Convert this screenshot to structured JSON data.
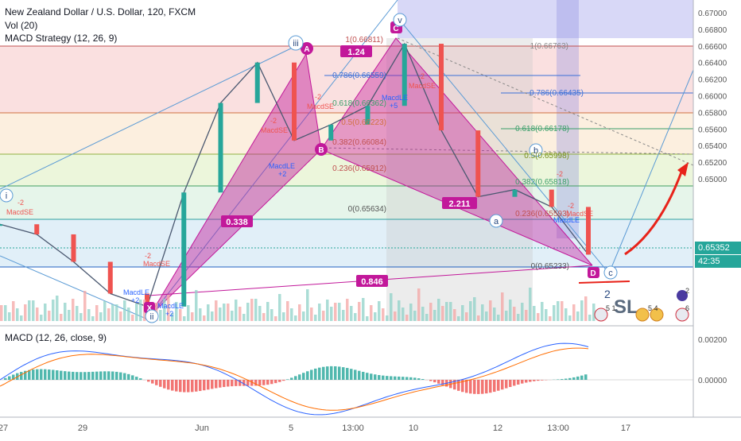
{
  "header": {
    "title": "New Zealand Dollar / U.S. Dollar, 120, FXCM",
    "volume": "Vol (20)",
    "strategy": "MACD Strategy (12, 26, 9)",
    "macd_title": "MACD (12, 26, close, 9)"
  },
  "price_axis": {
    "ticks": [
      "0.67000",
      "0.66800",
      "0.66600",
      "0.66400",
      "0.66200",
      "0.66000",
      "0.65800",
      "0.65600",
      "0.65400",
      "0.65200",
      "0.65000"
    ],
    "current_price": "0.65352",
    "countdown": "42:35"
  },
  "macd_axis": {
    "ticks": [
      "0.00200",
      "0.00000"
    ]
  },
  "time_axis": {
    "ticks": [
      "27",
      "29",
      "Jun",
      "5",
      "13:00",
      "10",
      "12",
      "13:00",
      "17"
    ]
  },
  "patterns": {
    "points": [
      "X",
      "A",
      "B",
      "C",
      "D"
    ],
    "ratios": [
      "1.24",
      "0.338",
      "2.211",
      "0.846"
    ],
    "waves": [
      "i",
      "ii",
      "iii",
      "v",
      "a",
      "b",
      "c"
    ]
  },
  "fib_left": [
    "1(0.66811)",
    "0.786(0.66559)",
    "0.618(0.66362)",
    "0.5(0.66223)",
    "0.382(0.66084)",
    "0.236(0.65912)",
    "0(0.65634)"
  ],
  "fib_right": [
    "1(0.66763)",
    "0.786(0.66435)",
    "0.618(0.66178)",
    "0.5(0.65998)",
    "0.382(0.65818)",
    "0.236(0.65593)",
    "0(0.65233)"
  ],
  "strategy_labels": {
    "long": "MacdLE",
    "short": "MacdSE",
    "plus": "+2",
    "minus": "-2",
    "fill": "+5"
  },
  "annotations": {
    "sl": "SL",
    "sl_count": "2"
  },
  "event_badges": [
    "5 1",
    "5 4",
    "2",
    "6"
  ],
  "colors": {
    "bull": "#26a69a",
    "bear": "#ef5350",
    "pattern": "#c2189a",
    "wave": "#5b9bd5",
    "current": "#26a69a"
  },
  "chart_data": {
    "type": "line",
    "title": "New Zealand Dollar / U.S. Dollar, 120, FXCM",
    "ylim": [
      0.6489,
      0.6708
    ],
    "x_ticks": [
      "27",
      "29",
      "Jun",
      "5",
      "13:00",
      "10",
      "12",
      "13:00",
      "17"
    ],
    "series": [
      {
        "name": "NZD/USD",
        "values": [
          {
            "x": "May 27",
            "y": 0.6556
          },
          {
            "x": "May 28",
            "y": 0.6549
          },
          {
            "x": "May 29",
            "y": 0.653
          },
          {
            "x": "May 30",
            "y": 0.6508
          },
          {
            "x": "May 31",
            "y": 0.6499
          },
          {
            "x": "Jun 3",
            "y": 0.6578
          },
          {
            "x": "Jun 4",
            "y": 0.664
          },
          {
            "x": "Jun 5",
            "y": 0.6668
          },
          {
            "x": "Jun 5 13:00",
            "y": 0.6614
          },
          {
            "x": "Jun 6",
            "y": 0.6625
          },
          {
            "x": "Jun 7",
            "y": 0.6638
          },
          {
            "x": "Jun 10",
            "y": 0.6681
          },
          {
            "x": "Jun 11",
            "y": 0.6621
          },
          {
            "x": "Jun 12",
            "y": 0.6575
          },
          {
            "x": "Jun 12 13:00",
            "y": 0.658
          },
          {
            "x": "Jun 13",
            "y": 0.6568
          },
          {
            "x": "Jun 13 13:00",
            "y": 0.6535
          }
        ]
      }
    ],
    "macd": {
      "name": "MACD (12, 26, close, 9)",
      "ylim": [
        -0.0012,
        0.0025
      ]
    }
  }
}
